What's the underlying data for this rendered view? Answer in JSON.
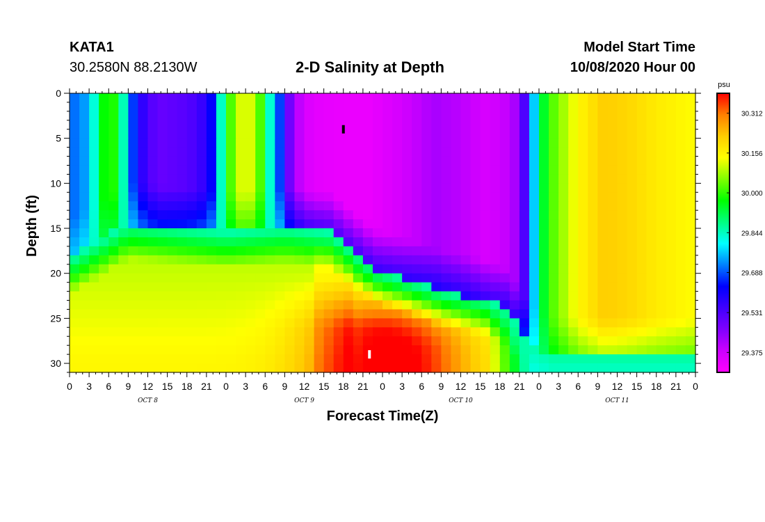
{
  "header": {
    "station": "KATA1",
    "coords": "30.2580N 88.2130W",
    "title": "2-D Salinity at Depth",
    "model_start_label": "Model Start Time",
    "model_start_value": "10/08/2020 Hour 00"
  },
  "chart_data": {
    "type": "heatmap",
    "title": "2-D Salinity at Depth",
    "xlabel": "Forecast Time(Z)",
    "ylabel": "Depth (ft)",
    "x_hours_range": [
      0,
      96
    ],
    "xlim": [
      0,
      96
    ],
    "ylim": [
      0,
      31
    ],
    "y_inverted": true,
    "x_ticks": [
      "0",
      "3",
      "6",
      "9",
      "12",
      "15",
      "18",
      "21",
      "0",
      "3",
      "6",
      "9",
      "12",
      "15",
      "18",
      "21",
      "0",
      "3",
      "6",
      "9",
      "12",
      "15",
      "18",
      "21",
      "0",
      "3",
      "6",
      "9",
      "12",
      "15",
      "18",
      "21",
      "0"
    ],
    "day_labels": [
      {
        "hour": 12,
        "text": "OCT 8"
      },
      {
        "hour": 36,
        "text": "OCT 9"
      },
      {
        "hour": 60,
        "text": "OCT 10"
      },
      {
        "hour": 84,
        "text": "OCT 11"
      }
    ],
    "y_ticks": [
      0,
      5,
      10,
      15,
      20,
      25,
      30
    ],
    "colorbar": {
      "unit": "psu",
      "min": 29.297,
      "max": 30.39,
      "tick_values": [
        30.312,
        30.156,
        30.0,
        29.844,
        29.688,
        29.531,
        29.375
      ],
      "tick_labels": [
        "30.312",
        "30.156",
        "30.000",
        "29.844",
        "29.688",
        "29.531",
        "29.375"
      ],
      "colors": [
        "#ff00ff",
        "#cc00ff",
        "#8000ff",
        "#4000ff",
        "#0000ff",
        "#0080ff",
        "#00ffff",
        "#00ff80",
        "#00ff00",
        "#80ff00",
        "#ffff00",
        "#ffcc00",
        "#ff8000",
        "#ff0000"
      ]
    },
    "markers": [
      {
        "name": "min-marker",
        "hour": 42,
        "depth": 4,
        "color": "#000000"
      },
      {
        "name": "max-marker",
        "hour": 46,
        "depth": 29,
        "color": "#ffffff"
      }
    ],
    "features": [
      {
        "name": "mixed-layer-depth",
        "hour": [
          0,
          9,
          24,
          33,
          40,
          47,
          57,
          64,
          67,
          70,
          74,
          80,
          96
        ],
        "depth": [
          20,
          16,
          17,
          16.5,
          17,
          21,
          23.5,
          24.5,
          25.5,
          29,
          31,
          31,
          31
        ]
      },
      {
        "name": "saline-core",
        "hour": 46,
        "depth": 29,
        "value": 30.39
      }
    ]
  }
}
